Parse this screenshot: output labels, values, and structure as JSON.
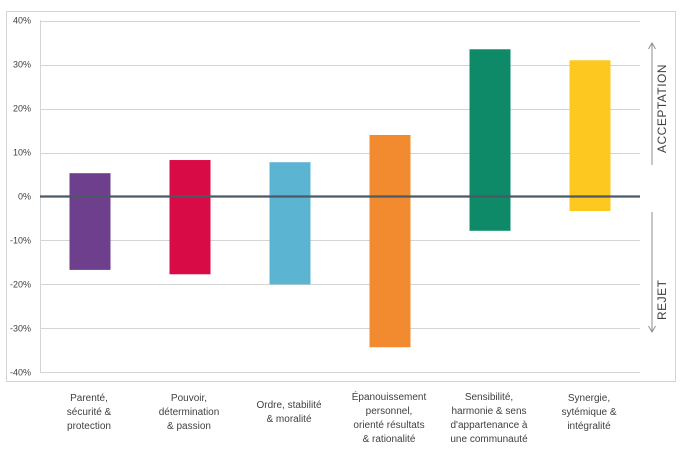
{
  "chart_data": {
    "type": "bar",
    "subtype": "floating-range",
    "title": "",
    "xlabel": "",
    "ylabel": "",
    "ylim": [
      -40,
      40
    ],
    "yticks": [
      40,
      30,
      20,
      10,
      0,
      -10,
      -20,
      -30,
      -40
    ],
    "ytick_labels": [
      "40%",
      "30%",
      "20%",
      "10%",
      "0%",
      "-10%",
      "-20%",
      "-30%",
      "-40%"
    ],
    "grid": true,
    "categories": [
      "Parenté, sécurité & protection",
      "Pouvoir, détermination & passion",
      "Ordre, stabilité & moralité",
      "Épanouissement personnel, orienté résultats & rationalité",
      "Sensibilité, harmonie & sens d'appartenance à une communauté",
      "Synergie, sytémique & intégralité"
    ],
    "category_lines": [
      [
        "Parenté,",
        "sécurité &",
        "protection"
      ],
      [
        "Pouvoir,",
        "détermination",
        "& passion"
      ],
      [
        "Ordre, stabilité",
        "& moralité"
      ],
      [
        "Épanouissement",
        "personnel,",
        "orienté résultats",
        "& rationalité"
      ],
      [
        "Sensibilité,",
        "harmonie & sens",
        "d'appartenance à",
        "une communauté"
      ],
      [
        "Synergie,",
        "sytémique &",
        "intégralité"
      ]
    ],
    "series": [
      {
        "name": "Acceptation",
        "values": [
          5.3,
          8.3,
          7.8,
          14.0,
          33.5,
          31.0
        ]
      },
      {
        "name": "Rejet",
        "values": [
          -16.7,
          -17.7,
          -20.0,
          -34.3,
          -7.8,
          -3.3
        ]
      }
    ],
    "colors": [
      "#6e3f8d",
      "#d90b47",
      "#5cb4d3",
      "#f28b30",
      "#0e8a68",
      "#fdc81f"
    ],
    "annotations": [
      {
        "text": "ACCEPTATION",
        "direction": "up",
        "placement": "right-upper"
      },
      {
        "text": "REJET",
        "direction": "down",
        "placement": "right-lower"
      }
    ]
  }
}
